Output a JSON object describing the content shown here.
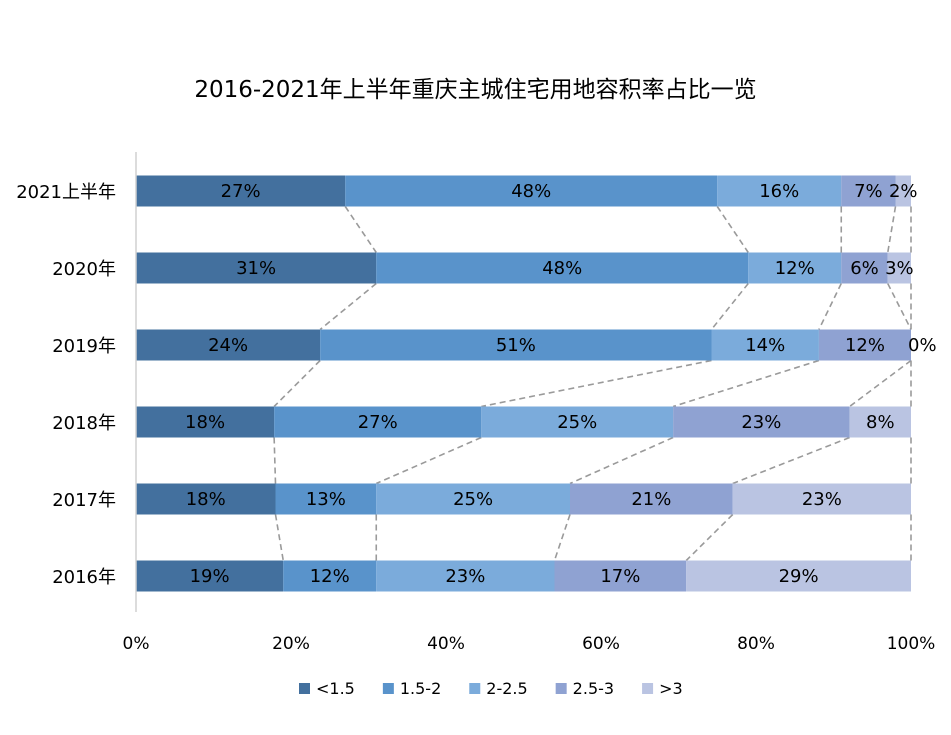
{
  "chart_data": {
    "type": "bar",
    "orientation": "horizontal",
    "stacked": "percent",
    "title": "2016-2021年上半年重庆主城住宅用地容积率占比一览",
    "categories": [
      "2021上半年",
      "2020年",
      "2019年",
      "2018年",
      "2017年",
      "2016年"
    ],
    "series": [
      {
        "name": "<1.5",
        "color": "#43709E",
        "values": [
          27,
          31,
          24,
          18,
          18,
          19
        ]
      },
      {
        "name": "1.5-2",
        "color": "#5993CB",
        "values": [
          48,
          48,
          51,
          27,
          13,
          12
        ]
      },
      {
        "name": "2-2.5",
        "color": "#7BABDB",
        "values": [
          16,
          12,
          14,
          25,
          25,
          23
        ]
      },
      {
        "name": "2.5-3",
        "color": "#8FA2D2",
        "values": [
          7,
          6,
          12,
          23,
          21,
          17
        ]
      },
      {
        "name": ">3",
        "color": "#BAC4E2",
        "values": [
          2,
          3,
          0,
          8,
          23,
          29
        ]
      }
    ],
    "xlim": [
      0,
      100
    ],
    "x_ticks": [
      "0%",
      "20%",
      "40%",
      "60%",
      "80%",
      "100%"
    ],
    "legend_position": "bottom",
    "series_lines": "dashed gray",
    "grid": false
  }
}
